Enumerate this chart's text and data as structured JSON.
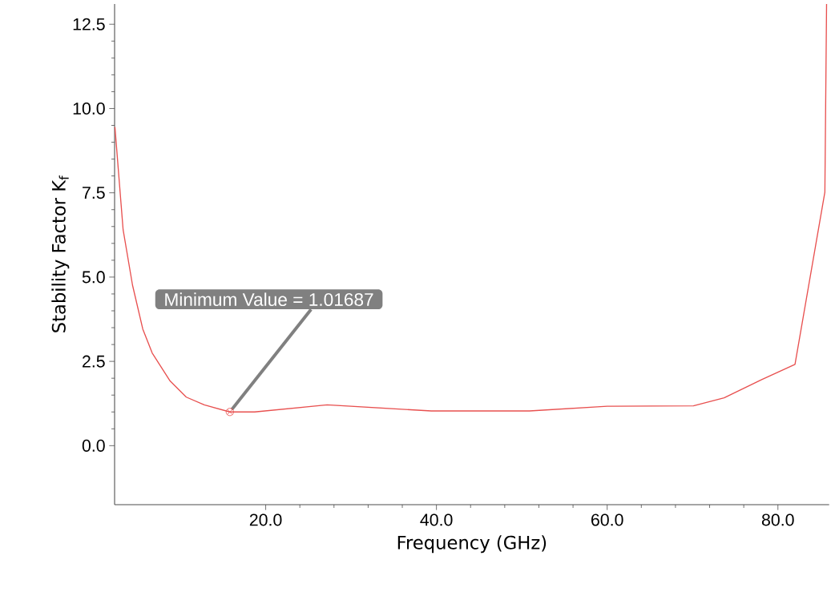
{
  "chart_data": {
    "type": "line",
    "xlabel": "Frequency (GHz)",
    "ylabel": "Stability Factor K$_{f}$",
    "x": [
      2.34,
      3.3,
      4.4,
      5.6,
      6.7,
      8.8,
      10.7,
      12.8,
      15.8,
      18.7,
      27.2,
      39.4,
      50.9,
      60.0,
      70.1,
      73.7,
      78.1,
      82.0,
      85.5,
      85.7
    ],
    "series": [
      {
        "color": "#e8504f",
        "values": [
          9.45,
          6.4,
          4.76,
          3.46,
          2.75,
          1.92,
          1.44,
          1.21,
          1.0,
          1.0,
          1.21,
          1.03,
          1.03,
          1.17,
          1.18,
          1.42,
          1.96,
          2.41,
          7.52,
          13.1
        ]
      }
    ],
    "xlim": [
      2.3,
      86.0
    ],
    "ylim": [
      -1.75,
      13.1
    ],
    "xticks": [
      {
        "value": 20,
        "label": "20.0"
      },
      {
        "value": 40,
        "label": "40.0"
      },
      {
        "value": 60,
        "label": "60.0"
      },
      {
        "value": 80,
        "label": "80.0"
      }
    ],
    "yticks": [
      {
        "value": 0,
        "label": "0.0"
      },
      {
        "value": 2.5,
        "label": "2.5"
      },
      {
        "value": 5,
        "label": "5.0"
      },
      {
        "value": 7.5,
        "label": "7.5"
      },
      {
        "value": 10,
        "label": "10.0"
      },
      {
        "value": 12.5,
        "label": "12.5"
      }
    ],
    "annotations": [
      {
        "text": "Minimum Value = 1.01687",
        "x": 15.8,
        "y": 1.0
      }
    ],
    "grid": false,
    "marker": "none",
    "line_style": "solid"
  }
}
